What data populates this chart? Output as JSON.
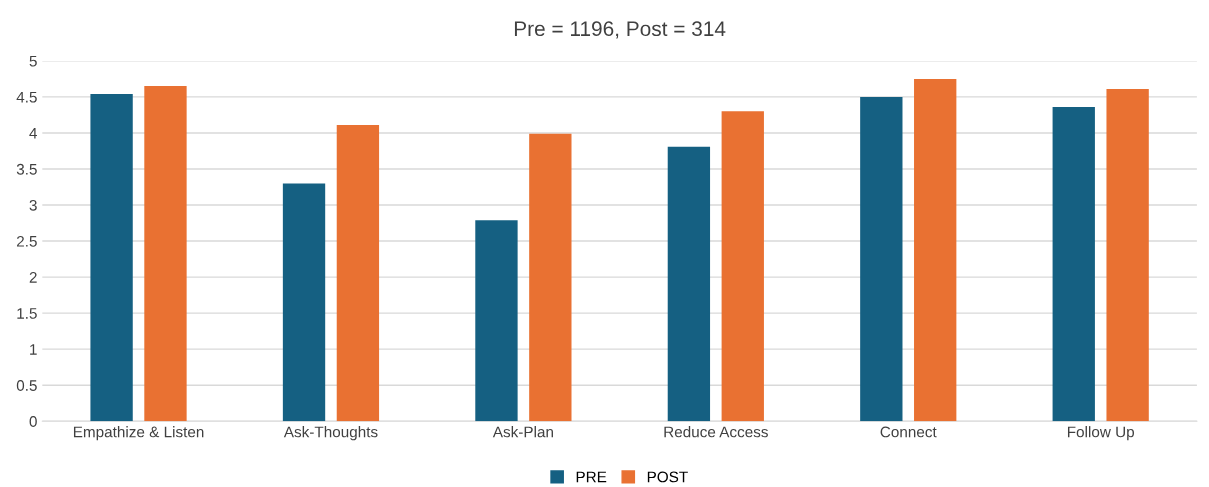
{
  "chart_data": {
    "type": "bar",
    "title": "Pre = 1196, Post = 314",
    "categories": [
      "Empathize & Listen",
      "Ask-Thoughts",
      "Ask-Plan",
      "Reduce Access",
      "Connect",
      "Follow Up"
    ],
    "series": [
      {
        "name": "PRE",
        "color": "#156082",
        "values": [
          4.54,
          3.3,
          2.79,
          3.81,
          4.5,
          4.36
        ]
      },
      {
        "name": "POST",
        "color": "#e97132",
        "values": [
          4.65,
          4.11,
          3.99,
          4.3,
          4.75,
          4.61
        ]
      }
    ],
    "ylim": [
      0,
      5
    ],
    "yticks": [
      0,
      0.5,
      1,
      1.5,
      2,
      2.5,
      3,
      3.5,
      4,
      4.5,
      5
    ],
    "grid": "y",
    "legend": "bottom"
  }
}
